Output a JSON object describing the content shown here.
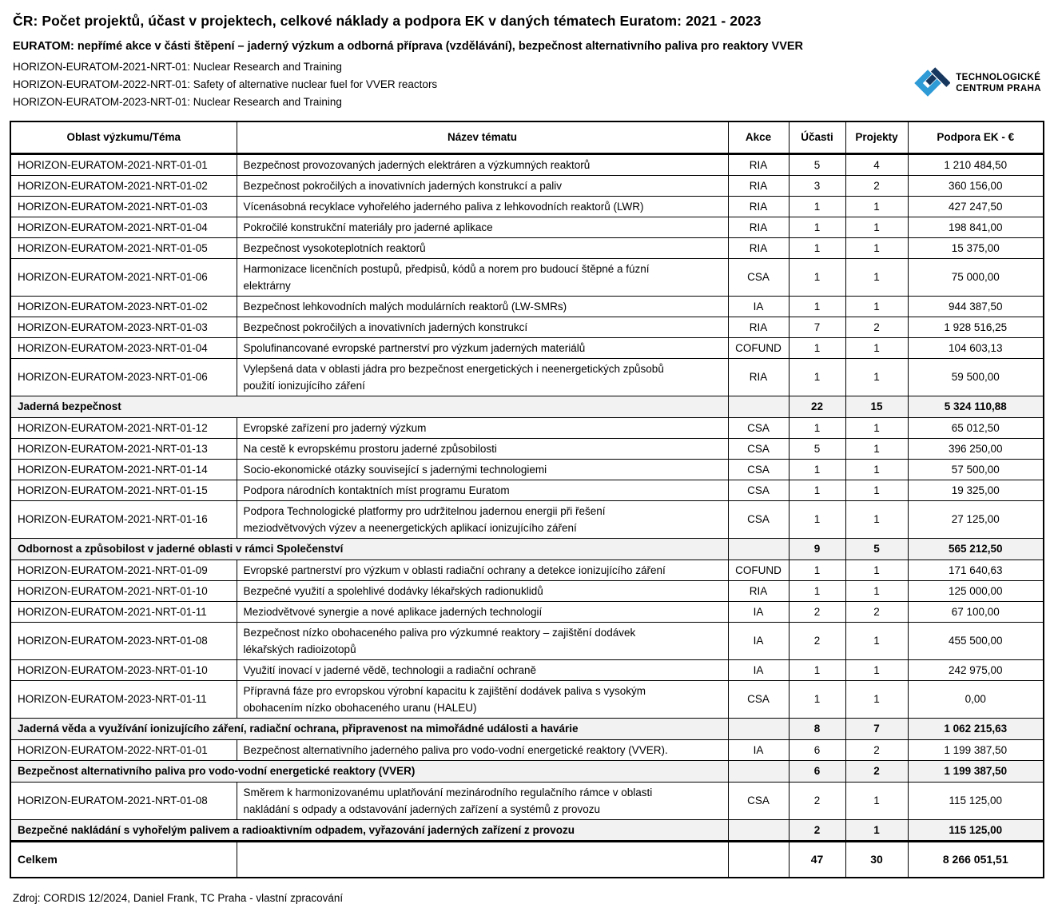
{
  "page": {
    "title": "ČR: Počet projektů, účast v projektech, celkové náklady a podpora EK v daných tématech Euratom: 2021 - 2023",
    "subtitle": "EURATOM: nepřímé akce v části štěpení – jaderný výzkum a odborná příprava (vzdělávání), bezpečnost alternativního paliva pro reaktory VVER",
    "program_lines": [
      "HORIZON-EURATOM-2021-NRT-01: Nuclear Research and Training",
      "HORIZON-EURATOM-2022-NRT-01: Safety of alternative nuclear fuel for VVER reactors",
      "HORIZON-EURATOM-2023-NRT-01: Nuclear Research and Training"
    ],
    "source_note": "Zdroj: CORDIS 12/2024, Daniel Frank, TC Praha - vlastní zpracování"
  },
  "logo": {
    "line1": "TECHNOLOGICKÉ",
    "line2": "CENTRUM PRAHA",
    "color_navy": "#17375E",
    "color_blue": "#2E9AD6"
  },
  "table": {
    "columns": [
      "Oblast výzkumu/Téma",
      "Název tématu",
      "Akce",
      "Účasti",
      "Projekty",
      "Podpora EK - €"
    ],
    "rows": [
      {
        "type": "data",
        "code": "HORIZON-EURATOM-2021-NRT-01-01",
        "name": "Bezpečnost provozovaných jaderných elektráren a výzkumných reaktorů",
        "akce": "RIA",
        "ucasti": "5",
        "projekty": "4",
        "podpora": "1 210 484,50"
      },
      {
        "type": "data",
        "code": "HORIZON-EURATOM-2021-NRT-01-02",
        "name": "Bezpečnost pokročilých a inovativních jaderných konstrukcí a paliv",
        "akce": "RIA",
        "ucasti": "3",
        "projekty": "2",
        "podpora": "360 156,00"
      },
      {
        "type": "data",
        "code": "HORIZON-EURATOM-2021-NRT-01-03",
        "name": "Vícenásobná recyklace vyhořelého jaderného paliva z lehkovodních reaktorů (LWR)",
        "akce": "RIA",
        "ucasti": "1",
        "projekty": "1",
        "podpora": "427 247,50"
      },
      {
        "type": "data",
        "code": "HORIZON-EURATOM-2021-NRT-01-04",
        "name": "Pokročilé konstrukční materiály pro jaderné aplikace",
        "akce": "RIA",
        "ucasti": "1",
        "projekty": "1",
        "podpora": "198 841,00"
      },
      {
        "type": "data",
        "code": "HORIZON-EURATOM-2021-NRT-01-05",
        "name": "Bezpečnost vysokoteplotních reaktorů",
        "akce": "RIA",
        "ucasti": "1",
        "projekty": "1",
        "podpora": "15 375,00"
      },
      {
        "type": "data",
        "code": "HORIZON-EURATOM-2021-NRT-01-06",
        "name": "Harmonizace licenčních postupů, předpisů, kódů a norem pro budoucí štěpné a fúzní\nelektrárny",
        "akce": "CSA",
        "ucasti": "1",
        "projekty": "1",
        "podpora": "75 000,00"
      },
      {
        "type": "data",
        "code": "HORIZON-EURATOM-2023-NRT-01-02",
        "name": "Bezpečnost lehkovodních malých modulárních reaktorů (LW-SMRs)",
        "akce": "IA",
        "ucasti": "1",
        "projekty": "1",
        "podpora": "944 387,50"
      },
      {
        "type": "data",
        "code": "HORIZON-EURATOM-2023-NRT-01-03",
        "name": "Bezpečnost pokročilých a inovativních jaderných konstrukcí",
        "akce": "RIA",
        "ucasti": "7",
        "projekty": "2",
        "podpora": "1 928 516,25"
      },
      {
        "type": "data",
        "code": "HORIZON-EURATOM-2023-NRT-01-04",
        "name": "Spolufinancované evropské partnerství pro výzkum jaderných materiálů",
        "akce": "COFUND",
        "ucasti": "1",
        "projekty": "1",
        "podpora": "104 603,13"
      },
      {
        "type": "data",
        "code": "HORIZON-EURATOM-2023-NRT-01-06",
        "name": "Vylepšená data v oblasti jádra pro bezpečnost energetických i neenergetických způsobů\npoužití ionizujícího záření",
        "akce": "RIA",
        "ucasti": "1",
        "projekty": "1",
        "podpora": "59 500,00"
      },
      {
        "type": "summary",
        "name": "Jaderná bezpečnost",
        "ucasti": "22",
        "projekty": "15",
        "podpora": "5 324 110,88"
      },
      {
        "type": "data",
        "code": "HORIZON-EURATOM-2021-NRT-01-12",
        "name": "Evropské zařízení pro jaderný výzkum",
        "akce": "CSA",
        "ucasti": "1",
        "projekty": "1",
        "podpora": "65 012,50"
      },
      {
        "type": "data",
        "code": "HORIZON-EURATOM-2021-NRT-01-13",
        "name": "Na cestě k evropskému prostoru jaderné způsobilosti",
        "akce": "CSA",
        "ucasti": "5",
        "projekty": "1",
        "podpora": "396 250,00"
      },
      {
        "type": "data",
        "code": "HORIZON-EURATOM-2021-NRT-01-14",
        "name": "Socio-ekonomické otázky související s jadernými technologiemi",
        "akce": "CSA",
        "ucasti": "1",
        "projekty": "1",
        "podpora": "57 500,00"
      },
      {
        "type": "data",
        "code": "HORIZON-EURATOM-2021-NRT-01-15",
        "name": "Podpora národních kontaktních míst programu Euratom",
        "akce": "CSA",
        "ucasti": "1",
        "projekty": "1",
        "podpora": "19 325,00"
      },
      {
        "type": "data",
        "code": "HORIZON-EURATOM-2021-NRT-01-16",
        "name": "Podpora Technologické platformy pro udržitelnou jadernou energii při řešení\nmeziodvětvových výzev a neenergetických aplikací ionizujícího záření",
        "akce": "CSA",
        "ucasti": "1",
        "projekty": "1",
        "podpora": "27 125,00"
      },
      {
        "type": "summary",
        "name": "Odbornost a způsobilost v jaderné oblasti v rámci Společenství",
        "ucasti": "9",
        "projekty": "5",
        "podpora": "565 212,50"
      },
      {
        "type": "data",
        "code": "HORIZON-EURATOM-2021-NRT-01-09",
        "name": "Evropské partnerství pro výzkum v oblasti radiační ochrany a detekce ionizujícího záření",
        "akce": "COFUND",
        "ucasti": "1",
        "projekty": "1",
        "podpora": "171 640,63"
      },
      {
        "type": "data",
        "code": "HORIZON-EURATOM-2021-NRT-01-10",
        "name": "Bezpečné využití a spolehlivé dodávky lékařských radionuklidů",
        "akce": "RIA",
        "ucasti": "1",
        "projekty": "1",
        "podpora": "125 000,00"
      },
      {
        "type": "data",
        "code": "HORIZON-EURATOM-2021-NRT-01-11",
        "name": "Meziodvětvové synergie a nové aplikace jaderných technologií",
        "akce": "IA",
        "ucasti": "2",
        "projekty": "2",
        "podpora": "67 100,00"
      },
      {
        "type": "data",
        "code": "HORIZON-EURATOM-2023-NRT-01-08",
        "name": "Bezpečnost nízko obohaceného paliva pro výzkumné reaktory – zajištění dodávek\nlékařských radioizotopů",
        "akce": "IA",
        "ucasti": "2",
        "projekty": "1",
        "podpora": "455 500,00"
      },
      {
        "type": "data",
        "code": "HORIZON-EURATOM-2023-NRT-01-10",
        "name": "Využití inovací v jaderné vědě, technologii a radiační ochraně",
        "akce": "IA",
        "ucasti": "1",
        "projekty": "1",
        "podpora": "242 975,00"
      },
      {
        "type": "data",
        "code": "HORIZON-EURATOM-2023-NRT-01-11",
        "name": "Přípravná fáze pro evropskou výrobní kapacitu k zajištění dodávek paliva s vysokým\nobohacením nízko obohaceného uranu (HALEU)",
        "akce": "CSA",
        "ucasti": "1",
        "projekty": "1",
        "podpora": "0,00"
      },
      {
        "type": "summary",
        "name": "Jaderná věda a využívání ionizujícího záření, radiační ochrana, připravenost na mimořádné události a havárie",
        "ucasti": "8",
        "projekty": "7",
        "podpora": "1 062 215,63"
      },
      {
        "type": "data",
        "code": "HORIZON-EURATOM-2022-NRT-01-01",
        "name": "Bezpečnost alternativního jaderného paliva pro vodo-vodní energetické reaktory (VVER).",
        "akce": "IA",
        "ucasti": "6",
        "projekty": "2",
        "podpora": "1 199 387,50"
      },
      {
        "type": "summary",
        "name": "Bezpečnost alternativního paliva pro vodo-vodní energetické reaktory (VVER)",
        "ucasti": "6",
        "projekty": "2",
        "podpora": "1 199 387,50"
      },
      {
        "type": "data",
        "code": "HORIZON-EURATOM-2021-NRT-01-08",
        "name": "Směrem k harmonizovanému uplatňování mezinárodního regulačního rámce v oblasti\nnakládání s odpady a odstavování jaderných zařízení a systémů z provozu",
        "akce": "CSA",
        "ucasti": "2",
        "projekty": "1",
        "podpora": "115 125,00"
      },
      {
        "type": "summary",
        "name": "Bezpečné nakládání s vyhořelým palivem a radioaktivním odpadem, vyřazování jaderných zařízení z provozu",
        "ucasti": "2",
        "projekty": "1",
        "podpora": "115 125,00"
      },
      {
        "type": "total",
        "name": "Celkem",
        "ucasti": "47",
        "projekty": "30",
        "podpora": "8 266 051,51"
      }
    ]
  }
}
